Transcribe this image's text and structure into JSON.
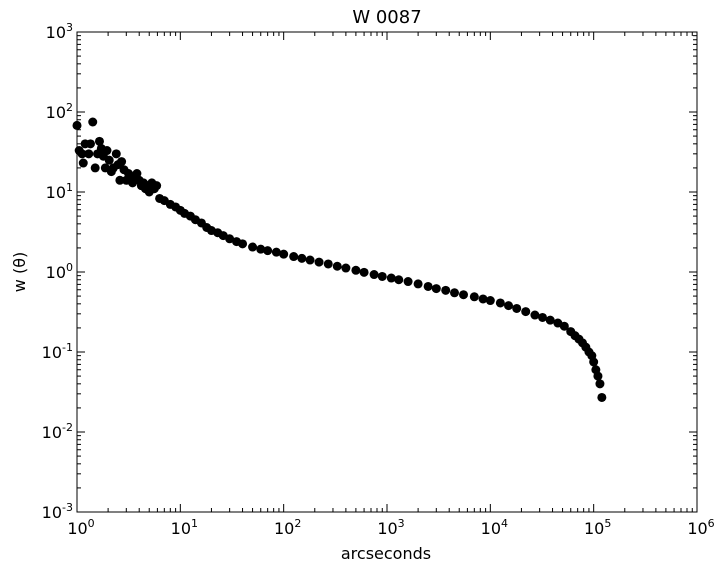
{
  "chart_data": {
    "type": "scatter",
    "title": "W 0087",
    "xlabel": "arcseconds",
    "ylabel": "w (θ)",
    "xscale": "log",
    "yscale": "log",
    "xlim": [
      1,
      1000000
    ],
    "ylim": [
      0.001,
      1000
    ],
    "x_ticks": [
      {
        "base": "10",
        "exp": "0"
      },
      {
        "base": "10",
        "exp": "1"
      },
      {
        "base": "10",
        "exp": "2"
      },
      {
        "base": "10",
        "exp": "3"
      },
      {
        "base": "10",
        "exp": "4"
      },
      {
        "base": "10",
        "exp": "5"
      },
      {
        "base": "10",
        "exp": "6"
      }
    ],
    "y_ticks": [
      {
        "base": "10",
        "exp": "-3"
      },
      {
        "base": "10",
        "exp": "-2"
      },
      {
        "base": "10",
        "exp": "-1"
      },
      {
        "base": "10",
        "exp": "0"
      },
      {
        "base": "10",
        "exp": "1"
      },
      {
        "base": "10",
        "exp": "2"
      },
      {
        "base": "10",
        "exp": "3"
      }
    ],
    "grid": false,
    "marker_color": "#000000",
    "points": [
      [
        1.0,
        68
      ],
      [
        1.05,
        33
      ],
      [
        1.12,
        30
      ],
      [
        1.15,
        23
      ],
      [
        1.2,
        40
      ],
      [
        1.3,
        30
      ],
      [
        1.35,
        40
      ],
      [
        1.42,
        75
      ],
      [
        1.5,
        20
      ],
      [
        1.58,
        30
      ],
      [
        1.65,
        43
      ],
      [
        1.72,
        35
      ],
      [
        1.8,
        28
      ],
      [
        1.88,
        20
      ],
      [
        1.95,
        33
      ],
      [
        2.05,
        25
      ],
      [
        2.15,
        18
      ],
      [
        2.25,
        20
      ],
      [
        2.4,
        30
      ],
      [
        2.5,
        22
      ],
      [
        2.6,
        14
      ],
      [
        2.7,
        24
      ],
      [
        2.85,
        19
      ],
      [
        3.0,
        14
      ],
      [
        3.15,
        17
      ],
      [
        3.3,
        14
      ],
      [
        3.45,
        13
      ],
      [
        3.6,
        15
      ],
      [
        3.8,
        17
      ],
      [
        4.0,
        14
      ],
      [
        4.2,
        12
      ],
      [
        4.4,
        13
      ],
      [
        4.6,
        11
      ],
      [
        4.8,
        12
      ],
      [
        5.0,
        10
      ],
      [
        5.3,
        13
      ],
      [
        5.6,
        11
      ],
      [
        5.9,
        12
      ],
      [
        6.3,
        8.3
      ],
      [
        7.0,
        7.8
      ],
      [
        8.0,
        7.0
      ],
      [
        9.0,
        6.5
      ],
      [
        10,
        5.9
      ],
      [
        11,
        5.4
      ],
      [
        12.5,
        5.0
      ],
      [
        14,
        4.5
      ],
      [
        16,
        4.1
      ],
      [
        18,
        3.6
      ],
      [
        20,
        3.3
      ],
      [
        23,
        3.1
      ],
      [
        26,
        2.85
      ],
      [
        30,
        2.6
      ],
      [
        35,
        2.4
      ],
      [
        40,
        2.25
      ],
      [
        50,
        2.05
      ],
      [
        60,
        1.93
      ],
      [
        70,
        1.85
      ],
      [
        85,
        1.77
      ],
      [
        100,
        1.67
      ],
      [
        125,
        1.56
      ],
      [
        150,
        1.48
      ],
      [
        180,
        1.41
      ],
      [
        220,
        1.33
      ],
      [
        270,
        1.26
      ],
      [
        330,
        1.18
      ],
      [
        400,
        1.12
      ],
      [
        500,
        1.05
      ],
      [
        600,
        0.99
      ],
      [
        750,
        0.93
      ],
      [
        900,
        0.88
      ],
      [
        1100,
        0.84
      ],
      [
        1300,
        0.8
      ],
      [
        1600,
        0.76
      ],
      [
        2000,
        0.71
      ],
      [
        2500,
        0.66
      ],
      [
        3000,
        0.62
      ],
      [
        3700,
        0.59
      ],
      [
        4500,
        0.55
      ],
      [
        5500,
        0.52
      ],
      [
        7000,
        0.49
      ],
      [
        8500,
        0.46
      ],
      [
        10000,
        0.44
      ],
      [
        12500,
        0.41
      ],
      [
        15000,
        0.38
      ],
      [
        18000,
        0.35
      ],
      [
        22000,
        0.32
      ],
      [
        27000,
        0.29
      ],
      [
        32000,
        0.27
      ],
      [
        38000,
        0.25
      ],
      [
        45000,
        0.23
      ],
      [
        52000,
        0.21
      ],
      [
        60000,
        0.18
      ],
      [
        66000,
        0.16
      ],
      [
        72000,
        0.145
      ],
      [
        78000,
        0.13
      ],
      [
        84000,
        0.115
      ],
      [
        90000,
        0.1
      ],
      [
        96000,
        0.09
      ],
      [
        100000,
        0.075
      ],
      [
        105000,
        0.06
      ],
      [
        110000,
        0.05
      ],
      [
        115000,
        0.04
      ],
      [
        120000,
        0.027
      ]
    ]
  }
}
